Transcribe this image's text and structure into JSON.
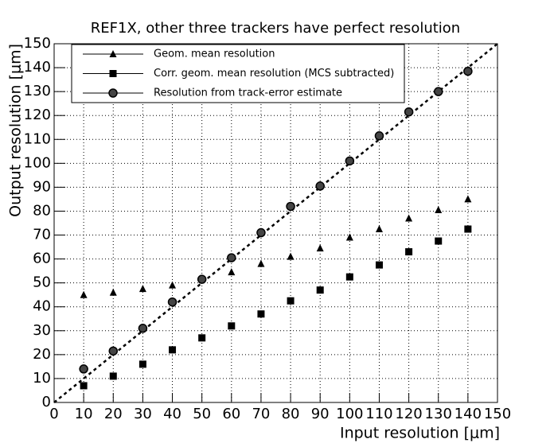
{
  "chart_data": {
    "type": "scatter",
    "title": "REF1X, other three trackers have perfect resolution",
    "x_label": "Input resolution [μm]",
    "y_label": "Output resolution [μm]",
    "xlim": [
      0,
      150
    ],
    "ylim": [
      0,
      150
    ],
    "xticks": [
      0,
      10,
      20,
      30,
      40,
      50,
      60,
      70,
      80,
      90,
      100,
      110,
      120,
      130,
      140,
      150
    ],
    "yticks": [
      0,
      10,
      20,
      30,
      40,
      50,
      60,
      70,
      80,
      90,
      100,
      110,
      120,
      130,
      140,
      150
    ],
    "grid": true,
    "diagonal": true,
    "legend": "top-left",
    "series": [
      {
        "name": "Geom. mean resolution",
        "color": "#000000",
        "marker": "triangle",
        "x": [
          10,
          20,
          30,
          40,
          60,
          70,
          80,
          90,
          100,
          110,
          120,
          130,
          140
        ],
        "values": [
          45,
          46,
          47.5,
          49,
          54.5,
          58,
          61,
          64.5,
          69,
          72.5,
          77,
          80.5,
          85
        ]
      },
      {
        "name": "Corr. geom. mean resolution (MCS subtracted)",
        "color": "#000000",
        "marker": "square",
        "x": [
          10,
          20,
          30,
          40,
          50,
          60,
          70,
          80,
          90,
          100,
          110,
          120,
          130,
          140
        ],
        "values": [
          7,
          11,
          16,
          22,
          27,
          32,
          37,
          42.5,
          47,
          52.5,
          57.5,
          63,
          67.5,
          72.5
        ]
      },
      {
        "name": "Resolution from track-error estimate",
        "color": "#000000",
        "marker": "circle",
        "x": [
          10,
          20,
          30,
          40,
          50,
          60,
          70,
          80,
          90,
          100,
          110,
          120,
          130,
          140
        ],
        "values": [
          14,
          21.5,
          31,
          42,
          51.5,
          60.5,
          71,
          82,
          90.5,
          101,
          111.5,
          121.5,
          130,
          138.5
        ]
      }
    ]
  }
}
